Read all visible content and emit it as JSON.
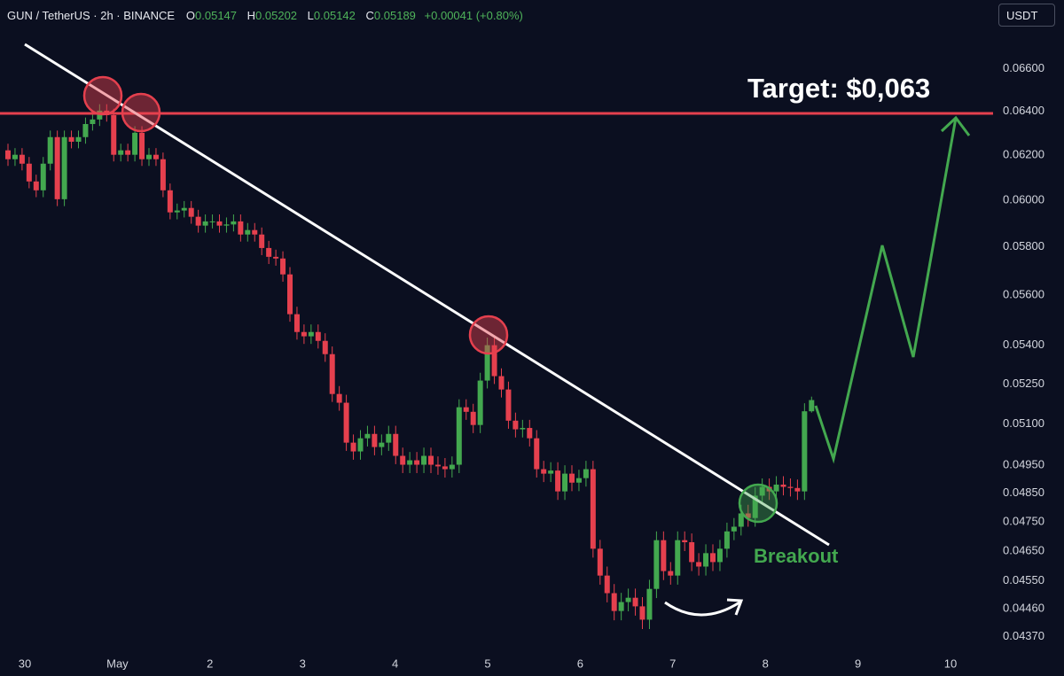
{
  "header": {
    "symbol": "GUN / TetherUS · 2h · BINANCE",
    "o_label": "O",
    "o": "0.05147",
    "h_label": "H",
    "h": "0.05202",
    "l_label": "L",
    "l": "0.05142",
    "c_label": "C",
    "c": "0.05189",
    "change": "+0.00041 (+0.80%)",
    "currency_button": "USDT"
  },
  "chart_data": {
    "type": "candlestick",
    "log": true,
    "up_color": "#43a84f",
    "down_color": "#e5404e",
    "ylim": [
      0.0431,
      0.0685
    ],
    "yticks": [
      {
        "value": 0.066,
        "label": "0.06600"
      },
      {
        "value": 0.064,
        "label": "0.06400"
      },
      {
        "value": 0.062,
        "label": "0.06200"
      },
      {
        "value": 0.06,
        "label": "0.06000"
      },
      {
        "value": 0.058,
        "label": "0.05800"
      },
      {
        "value": 0.056,
        "label": "0.05600"
      },
      {
        "value": 0.054,
        "label": "0.05400"
      },
      {
        "value": 0.0525,
        "label": "0.05250"
      },
      {
        "value": 0.051,
        "label": "0.05100"
      },
      {
        "value": 0.0495,
        "label": "0.04950"
      },
      {
        "value": 0.0485,
        "label": "0.04850"
      },
      {
        "value": 0.0475,
        "label": "0.04750"
      },
      {
        "value": 0.0465,
        "label": "0.04650"
      },
      {
        "value": 0.0455,
        "label": "0.04550"
      },
      {
        "value": 0.0446,
        "label": "0.04460"
      },
      {
        "value": 0.0437,
        "label": "0.04370"
      }
    ],
    "x_labels": [
      "30",
      "May",
      "2",
      "3",
      "4",
      "5",
      "6",
      "7",
      "8",
      "9",
      "10"
    ],
    "annotations": {
      "target": "Target: $0,063",
      "breakout": "Breakout"
    },
    "candles": [
      [
        0.06221,
        0.06251,
        0.06151,
        0.06181
      ],
      [
        0.06181,
        0.06231,
        0.06151,
        0.06201
      ],
      [
        0.06201,
        0.06231,
        0.06131,
        0.06161
      ],
      [
        0.06161,
        0.06191,
        0.06052,
        0.06082
      ],
      [
        0.06082,
        0.06112,
        0.06013,
        0.06043
      ],
      [
        0.06043,
        0.06191,
        0.06013,
        0.06161
      ],
      [
        0.06161,
        0.06311,
        0.06131,
        0.06281
      ],
      [
        0.06281,
        0.06311,
        0.05974,
        0.06004
      ],
      [
        0.06004,
        0.06311,
        0.05974,
        0.06281
      ],
      [
        0.06281,
        0.06311,
        0.0623,
        0.0626
      ],
      [
        0.0626,
        0.06311,
        0.0623,
        0.06281
      ],
      [
        0.06281,
        0.06371,
        0.06251,
        0.06341
      ],
      [
        0.06341,
        0.06392,
        0.06311,
        0.06362
      ],
      [
        0.06362,
        0.06433,
        0.06332,
        0.06403
      ],
      [
        0.06403,
        0.06433,
        0.06352,
        0.06382
      ],
      [
        0.06382,
        0.06412,
        0.06171,
        0.06201
      ],
      [
        0.06201,
        0.06251,
        0.06171,
        0.06221
      ],
      [
        0.06221,
        0.06251,
        0.06171,
        0.06201
      ],
      [
        0.06201,
        0.06331,
        0.06171,
        0.06301
      ],
      [
        0.06301,
        0.06331,
        0.06151,
        0.06181
      ],
      [
        0.06181,
        0.06231,
        0.06151,
        0.06201
      ],
      [
        0.06201,
        0.06231,
        0.06151,
        0.06181
      ],
      [
        0.06181,
        0.06211,
        0.06013,
        0.06043
      ],
      [
        0.06043,
        0.06073,
        0.05917,
        0.05947
      ],
      [
        0.05947,
        0.05985,
        0.05917,
        0.05955
      ],
      [
        0.05955,
        0.05996,
        0.05925,
        0.05966
      ],
      [
        0.05966,
        0.05996,
        0.05898,
        0.05928
      ],
      [
        0.05928,
        0.05958,
        0.0586,
        0.0589
      ],
      [
        0.0589,
        0.05938,
        0.0586,
        0.05908
      ],
      [
        0.05908,
        0.05938,
        0.05878,
        0.05908
      ],
      [
        0.05908,
        0.05938,
        0.0586,
        0.0589
      ],
      [
        0.0589,
        0.05925,
        0.0586,
        0.05895
      ],
      [
        0.05895,
        0.05938,
        0.05865,
        0.05908
      ],
      [
        0.05908,
        0.05938,
        0.05822,
        0.05852
      ],
      [
        0.05852,
        0.05901,
        0.05822,
        0.05871
      ],
      [
        0.05871,
        0.05901,
        0.05822,
        0.05852
      ],
      [
        0.05852,
        0.05882,
        0.05765,
        0.05795
      ],
      [
        0.05795,
        0.05825,
        0.05728,
        0.05758
      ],
      [
        0.05758,
        0.05788,
        0.05721,
        0.05751
      ],
      [
        0.05751,
        0.05781,
        0.05655,
        0.05685
      ],
      [
        0.05685,
        0.05715,
        0.05493,
        0.05523
      ],
      [
        0.05523,
        0.05553,
        0.05422,
        0.05452
      ],
      [
        0.05452,
        0.05482,
        0.05405,
        0.05435
      ],
      [
        0.05435,
        0.05482,
        0.05405,
        0.05452
      ],
      [
        0.05452,
        0.05482,
        0.05387,
        0.05417
      ],
      [
        0.05417,
        0.05447,
        0.05335,
        0.05365
      ],
      [
        0.05365,
        0.05395,
        0.05182,
        0.05212
      ],
      [
        0.05212,
        0.05242,
        0.05149,
        0.05179
      ],
      [
        0.05179,
        0.05209,
        0.05001,
        0.05031
      ],
      [
        0.05031,
        0.05061,
        0.04969,
        0.04999
      ],
      [
        0.04999,
        0.05077,
        0.04969,
        0.05047
      ],
      [
        0.05047,
        0.05093,
        0.05017,
        0.05063
      ],
      [
        0.05063,
        0.05093,
        0.04985,
        0.05015
      ],
      [
        0.05015,
        0.05061,
        0.04985,
        0.05031
      ],
      [
        0.05031,
        0.05093,
        0.05001,
        0.05063
      ],
      [
        0.05063,
        0.05093,
        0.04953,
        0.04983
      ],
      [
        0.04983,
        0.05013,
        0.04921,
        0.04951
      ],
      [
        0.04951,
        0.04997,
        0.04921,
        0.04967
      ],
      [
        0.04967,
        0.04997,
        0.04921,
        0.04951
      ],
      [
        0.04951,
        0.05013,
        0.04921,
        0.04983
      ],
      [
        0.04983,
        0.05013,
        0.04921,
        0.04951
      ],
      [
        0.04951,
        0.04981,
        0.04915,
        0.04945
      ],
      [
        0.04945,
        0.04975,
        0.04905,
        0.04935
      ],
      [
        0.04935,
        0.04981,
        0.04905,
        0.04951
      ],
      [
        0.04951,
        0.05192,
        0.04921,
        0.05162
      ],
      [
        0.05162,
        0.05192,
        0.05115,
        0.05145
      ],
      [
        0.05145,
        0.05175,
        0.05066,
        0.05096
      ],
      [
        0.05096,
        0.05293,
        0.05066,
        0.05263
      ],
      [
        0.05263,
        0.0543,
        0.05233,
        0.054
      ],
      [
        0.054,
        0.0543,
        0.0525,
        0.0528
      ],
      [
        0.0528,
        0.0531,
        0.05199,
        0.05229
      ],
      [
        0.05229,
        0.05259,
        0.05082,
        0.05112
      ],
      [
        0.05112,
        0.05142,
        0.0505,
        0.0508
      ],
      [
        0.0508,
        0.05115,
        0.0505,
        0.05085
      ],
      [
        0.05085,
        0.05115,
        0.05017,
        0.05047
      ],
      [
        0.05047,
        0.05077,
        0.04905,
        0.04935
      ],
      [
        0.04935,
        0.04965,
        0.04889,
        0.04919
      ],
      [
        0.04919,
        0.0496,
        0.04889,
        0.0493
      ],
      [
        0.0493,
        0.0496,
        0.04826,
        0.04856
      ],
      [
        0.04856,
        0.04949,
        0.04826,
        0.04919
      ],
      [
        0.04919,
        0.04949,
        0.04857,
        0.04887
      ],
      [
        0.04887,
        0.04933,
        0.04857,
        0.04903
      ],
      [
        0.04903,
        0.04965,
        0.04873,
        0.04935
      ],
      [
        0.04935,
        0.04965,
        0.04628,
        0.04658
      ],
      [
        0.04658,
        0.04688,
        0.04538,
        0.04568
      ],
      [
        0.04568,
        0.04598,
        0.0448,
        0.0451
      ],
      [
        0.0451,
        0.0454,
        0.04422,
        0.04452
      ],
      [
        0.04452,
        0.04511,
        0.04422,
        0.04481
      ],
      [
        0.04481,
        0.04525,
        0.04451,
        0.04495
      ],
      [
        0.04495,
        0.04525,
        0.04437,
        0.04467
      ],
      [
        0.04467,
        0.04497,
        0.04394,
        0.04424
      ],
      [
        0.04424,
        0.04554,
        0.04394,
        0.04524
      ],
      [
        0.04524,
        0.04717,
        0.04494,
        0.04687
      ],
      [
        0.04687,
        0.04717,
        0.04553,
        0.04583
      ],
      [
        0.04583,
        0.04613,
        0.04538,
        0.04568
      ],
      [
        0.04568,
        0.04717,
        0.04538,
        0.04687
      ],
      [
        0.04687,
        0.04717,
        0.0465,
        0.0468
      ],
      [
        0.0468,
        0.0471,
        0.04583,
        0.04613
      ],
      [
        0.04613,
        0.04643,
        0.04568,
        0.04598
      ],
      [
        0.04598,
        0.04673,
        0.04568,
        0.04643
      ],
      [
        0.04643,
        0.04673,
        0.04583,
        0.04613
      ],
      [
        0.04613,
        0.04688,
        0.04583,
        0.04658
      ],
      [
        0.04658,
        0.04747,
        0.04628,
        0.04717
      ],
      [
        0.04717,
        0.04763,
        0.04687,
        0.04733
      ],
      [
        0.04733,
        0.04809,
        0.04703,
        0.04779
      ],
      [
        0.04779,
        0.04809,
        0.04733,
        0.04763
      ],
      [
        0.04763,
        0.04871,
        0.04733,
        0.04841
      ],
      [
        0.04841,
        0.04902,
        0.04811,
        0.04872
      ],
      [
        0.04872,
        0.04902,
        0.04826,
        0.04856
      ],
      [
        0.04856,
        0.0491,
        0.04826,
        0.0488
      ],
      [
        0.0488,
        0.0491,
        0.04842,
        0.04872
      ],
      [
        0.04872,
        0.04902,
        0.04838,
        0.04868
      ],
      [
        0.04868,
        0.04898,
        0.04826,
        0.04856
      ],
      [
        0.04856,
        0.05177,
        0.04826,
        0.05147
      ],
      [
        0.05147,
        0.05202,
        0.05142,
        0.05189
      ]
    ]
  }
}
